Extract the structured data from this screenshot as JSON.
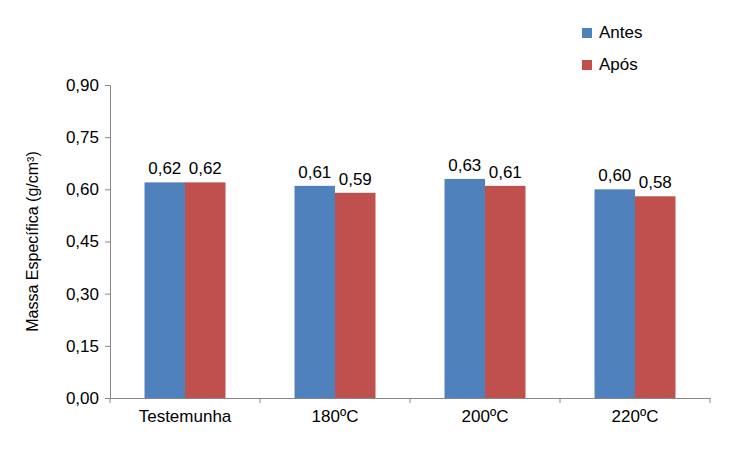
{
  "chart_data": {
    "type": "bar",
    "y_label": "Massa Específica (g/cm³)",
    "categories": [
      "Testemunha",
      "180ºC",
      "200ºC",
      "220ºC"
    ],
    "series": [
      {
        "name": "Antes",
        "color": "#4f81bd",
        "values": [
          0.62,
          0.61,
          0.63,
          0.6
        ],
        "value_labels": [
          "0,62",
          "0,61",
          "0,63",
          "0,60"
        ]
      },
      {
        "name": "Após",
        "color": "#c0504d",
        "values": [
          0.62,
          0.59,
          0.61,
          0.58
        ],
        "value_labels": [
          "0,62",
          "0,59",
          "0,61",
          "0,58"
        ]
      }
    ],
    "ylim": [
      0,
      0.9
    ],
    "yticks": [
      {
        "value": 0,
        "label": "0,00"
      },
      {
        "value": 0.15,
        "label": "0,15"
      },
      {
        "value": 0.3,
        "label": "0,30"
      },
      {
        "value": 0.45,
        "label": "0,45"
      },
      {
        "value": 0.6,
        "label": "0,60"
      },
      {
        "value": 0.75,
        "label": "0,75"
      },
      {
        "value": 0.9,
        "label": "0,90"
      }
    ],
    "grid": false,
    "legend": "top-right",
    "data_labels": true
  }
}
